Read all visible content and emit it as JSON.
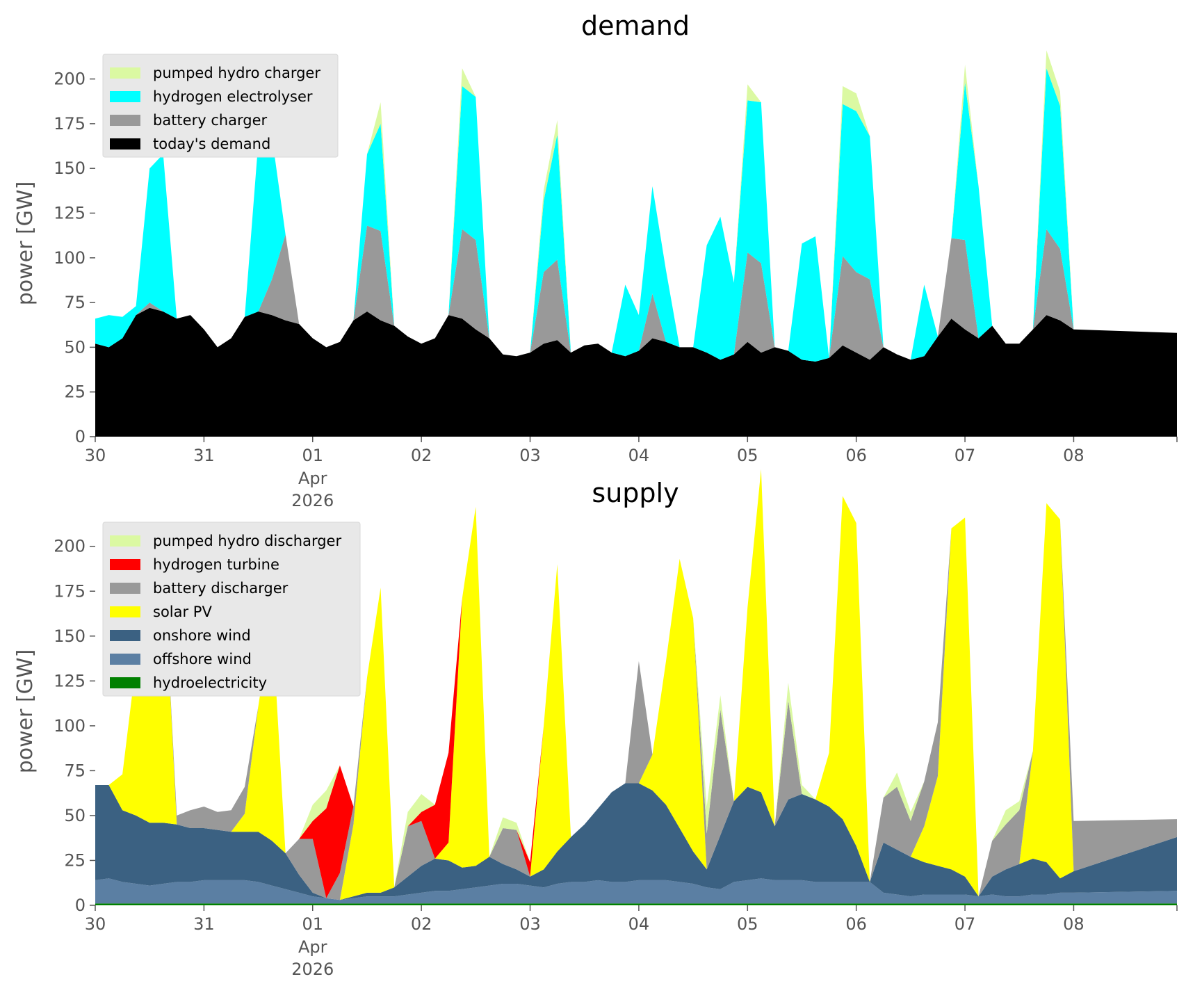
{
  "chart_data": [
    {
      "type": "area",
      "title": "demand",
      "ylabel": "power [GW]",
      "xlabel": "",
      "ylim": [
        0,
        215
      ],
      "yticks": [
        0,
        25,
        50,
        75,
        100,
        125,
        150,
        175,
        200
      ],
      "x_range_days": [
        0,
        9.95
      ],
      "x_start": "2026-03-30",
      "x_step_hours": 3,
      "x_ticks": [
        {
          "x": 0,
          "label": "30"
        },
        {
          "x": 1,
          "label": "31"
        },
        {
          "x": 2,
          "label": "01",
          "sub1": "Apr",
          "sub2": "2026"
        },
        {
          "x": 3,
          "label": "02"
        },
        {
          "x": 4,
          "label": "03"
        },
        {
          "x": 5,
          "label": "04"
        },
        {
          "x": 6,
          "label": "05"
        },
        {
          "x": 7,
          "label": "06"
        },
        {
          "x": 8,
          "label": "07"
        },
        {
          "x": 9,
          "label": "08"
        }
      ],
      "legend_position": "top-left",
      "legend": [
        "pumped hydro charger",
        "hydrogen electrolyser",
        "battery charger",
        "today's demand"
      ],
      "series": [
        {
          "name": "today's demand",
          "color": "#000000",
          "values": [
            52,
            50,
            55,
            68,
            72,
            70,
            66,
            68,
            60,
            50,
            55,
            67,
            70,
            68,
            65,
            63,
            55,
            50,
            53,
            65,
            70,
            65,
            62,
            56,
            52,
            55,
            68,
            66,
            60,
            55,
            46,
            45,
            47,
            52,
            54,
            47,
            51,
            52,
            47,
            45,
            48,
            55,
            53,
            50,
            50,
            47,
            43,
            46,
            53,
            47,
            50,
            48,
            43,
            42,
            44,
            51,
            47,
            43,
            50,
            46,
            43,
            45,
            56,
            66,
            60,
            55,
            62,
            52,
            52,
            60,
            68,
            65,
            60,
            58
          ]
        },
        {
          "name": "battery charger",
          "color": "#999999",
          "values": [
            0,
            0,
            0,
            0,
            3,
            0,
            0,
            0,
            0,
            0,
            0,
            0,
            0,
            20,
            48,
            0,
            0,
            0,
            0,
            0,
            48,
            50,
            0,
            0,
            0,
            0,
            0,
            50,
            50,
            0,
            0,
            0,
            0,
            40,
            45,
            0,
            0,
            0,
            0,
            0,
            0,
            25,
            0,
            0,
            0,
            0,
            0,
            0,
            50,
            50,
            0,
            0,
            0,
            0,
            0,
            50,
            45,
            45,
            0,
            0,
            0,
            0,
            0,
            45,
            50,
            0,
            0,
            0,
            0,
            0,
            48,
            40,
            0,
            0
          ]
        },
        {
          "name": "hydrogen electrolyser",
          "color": "#00ffff",
          "values": [
            14,
            18,
            12,
            5,
            75,
            88,
            0,
            0,
            0,
            0,
            0,
            0,
            95,
            80,
            0,
            0,
            0,
            0,
            0,
            0,
            40,
            60,
            0,
            0,
            0,
            0,
            0,
            80,
            80,
            0,
            0,
            0,
            0,
            40,
            70,
            0,
            0,
            0,
            0,
            40,
            20,
            60,
            40,
            0,
            0,
            60,
            80,
            40,
            85,
            90,
            0,
            0,
            65,
            70,
            0,
            85,
            90,
            80,
            0,
            0,
            0,
            40,
            0,
            0,
            88,
            85,
            0,
            0,
            0,
            0,
            90,
            80,
            0,
            0
          ]
        },
        {
          "name": "pumped hydro charger",
          "color": "#dbf9a2",
          "values": [
            0,
            0,
            0,
            0,
            0,
            0,
            0,
            0,
            0,
            0,
            0,
            0,
            0,
            0,
            0,
            0,
            0,
            0,
            0,
            0,
            0,
            12,
            0,
            0,
            0,
            0,
            0,
            10,
            0,
            0,
            0,
            0,
            0,
            6,
            8,
            0,
            0,
            0,
            0,
            0,
            0,
            0,
            0,
            0,
            0,
            0,
            0,
            0,
            9,
            0,
            0,
            0,
            0,
            0,
            0,
            10,
            10,
            0,
            0,
            0,
            0,
            0,
            0,
            0,
            10,
            0,
            0,
            0,
            0,
            0,
            10,
            8,
            0,
            0
          ]
        }
      ]
    },
    {
      "type": "area",
      "title": "supply",
      "ylabel": "power [GW]",
      "xlabel": "",
      "ylim": [
        0,
        215
      ],
      "yticks": [
        0,
        25,
        50,
        75,
        100,
        125,
        150,
        175,
        200
      ],
      "x_range_days": [
        0,
        9.95
      ],
      "x_start": "2026-03-30",
      "x_step_hours": 3,
      "x_ticks": [
        {
          "x": 0,
          "label": "30"
        },
        {
          "x": 1,
          "label": "31"
        },
        {
          "x": 2,
          "label": "01",
          "sub1": "Apr",
          "sub2": "2026"
        },
        {
          "x": 3,
          "label": "02"
        },
        {
          "x": 4,
          "label": "03"
        },
        {
          "x": 5,
          "label": "04"
        },
        {
          "x": 6,
          "label": "05"
        },
        {
          "x": 7,
          "label": "06"
        },
        {
          "x": 8,
          "label": "07"
        },
        {
          "x": 9,
          "label": "08"
        }
      ],
      "legend_position": "top-left",
      "legend": [
        "pumped hydro discharger",
        "hydrogen turbine",
        "battery discharger",
        "solar PV",
        "onshore wind",
        "offshore wind",
        "hydroelectricity"
      ],
      "series": [
        {
          "name": "hydroelectricity",
          "color": "#008000",
          "values": [
            1,
            1,
            1,
            1,
            1,
            1,
            1,
            1,
            1,
            1,
            1,
            1,
            1,
            1,
            1,
            1,
            1,
            1,
            1,
            1,
            1,
            1,
            1,
            1,
            1,
            1,
            1,
            1,
            1,
            1,
            1,
            1,
            1,
            1,
            1,
            1,
            1,
            1,
            1,
            1,
            1,
            1,
            1,
            1,
            1,
            1,
            1,
            1,
            1,
            1,
            1,
            1,
            1,
            1,
            1,
            1,
            1,
            1,
            1,
            1,
            1,
            1,
            1,
            1,
            1,
            1,
            1,
            1,
            1,
            1,
            1,
            1,
            1,
            1
          ]
        },
        {
          "name": "offshore wind",
          "color": "#5b7fa3",
          "values": [
            13,
            14,
            12,
            11,
            10,
            11,
            12,
            12,
            13,
            13,
            13,
            13,
            12,
            10,
            8,
            6,
            4,
            3,
            2,
            3,
            4,
            4,
            4,
            5,
            6,
            7,
            7,
            8,
            9,
            10,
            11,
            11,
            10,
            9,
            11,
            12,
            12,
            13,
            12,
            12,
            13,
            13,
            13,
            12,
            11,
            9,
            8,
            12,
            13,
            14,
            13,
            13,
            13,
            12,
            12,
            12,
            12,
            12,
            6,
            5,
            4,
            5,
            5,
            5,
            5,
            4,
            5,
            4,
            4,
            5,
            5,
            6,
            6,
            7
          ]
        },
        {
          "name": "onshore wind",
          "color": "#3b6182",
          "values": [
            53,
            52,
            40,
            38,
            35,
            34,
            32,
            30,
            29,
            28,
            27,
            27,
            28,
            25,
            20,
            10,
            2,
            0,
            0,
            1,
            2,
            2,
            5,
            10,
            15,
            18,
            17,
            12,
            12,
            16,
            11,
            8,
            5,
            10,
            18,
            25,
            32,
            40,
            50,
            55,
            54,
            50,
            42,
            30,
            18,
            10,
            30,
            45,
            52,
            48,
            30,
            45,
            48,
            46,
            42,
            35,
            20,
            0,
            28,
            25,
            22,
            18,
            16,
            14,
            10,
            0,
            10,
            15,
            18,
            20,
            18,
            8,
            12,
            30
          ]
        },
        {
          "name": "solar PV",
          "color": "#ffff00",
          "values": [
            0,
            0,
            20,
            85,
            140,
            150,
            0,
            0,
            0,
            0,
            0,
            10,
            70,
            125,
            0,
            0,
            0,
            0,
            0,
            40,
            120,
            170,
            0,
            0,
            0,
            0,
            10,
            150,
            200,
            0,
            0,
            0,
            0,
            80,
            160,
            0,
            0,
            0,
            0,
            0,
            0,
            20,
            80,
            150,
            130,
            0,
            0,
            0,
            100,
            180,
            0,
            0,
            0,
            0,
            30,
            180,
            180,
            0,
            0,
            0,
            0,
            20,
            50,
            190,
            200,
            0,
            0,
            0,
            0,
            60,
            200,
            200,
            0,
            0
          ]
        },
        {
          "name": "battery discharger",
          "color": "#999999",
          "values": [
            0,
            0,
            0,
            0,
            0,
            0,
            5,
            10,
            12,
            10,
            12,
            15,
            0,
            0,
            0,
            20,
            30,
            0,
            15,
            10,
            0,
            0,
            0,
            28,
            25,
            0,
            0,
            0,
            0,
            0,
            20,
            22,
            0,
            0,
            0,
            0,
            0,
            0,
            0,
            0,
            68,
            0,
            0,
            0,
            0,
            20,
            70,
            0,
            0,
            0,
            0,
            55,
            0,
            0,
            0,
            0,
            0,
            0,
            25,
            35,
            20,
            25,
            30,
            0,
            0,
            0,
            20,
            25,
            30,
            0,
            0,
            0,
            28,
            10
          ]
        },
        {
          "name": "hydrogen turbine",
          "color": "#ff0000",
          "values": [
            0,
            0,
            0,
            0,
            0,
            0,
            0,
            0,
            0,
            0,
            0,
            0,
            0,
            0,
            0,
            0,
            10,
            50,
            60,
            0,
            0,
            0,
            0,
            0,
            5,
            30,
            50,
            0,
            0,
            0,
            0,
            0,
            8,
            0,
            0,
            0,
            0,
            0,
            0,
            0,
            0,
            0,
            0,
            0,
            0,
            0,
            0,
            0,
            0,
            0,
            0,
            0,
            0,
            0,
            0,
            0,
            0,
            0,
            0,
            0,
            0,
            0,
            0,
            0,
            0,
            0,
            0,
            0,
            0,
            0,
            0,
            0,
            0,
            0
          ]
        },
        {
          "name": "pumped hydro discharger",
          "color": "#dbf9a2",
          "values": [
            0,
            0,
            0,
            0,
            0,
            0,
            0,
            0,
            0,
            0,
            0,
            0,
            0,
            0,
            0,
            0,
            9,
            10,
            0,
            0,
            0,
            0,
            0,
            8,
            10,
            0,
            0,
            0,
            0,
            0,
            6,
            4,
            0,
            0,
            0,
            0,
            0,
            0,
            0,
            0,
            0,
            0,
            0,
            0,
            0,
            15,
            8,
            0,
            0,
            0,
            0,
            10,
            5,
            0,
            0,
            0,
            0,
            0,
            0,
            8,
            5,
            0,
            0,
            0,
            0,
            0,
            0,
            8,
            5,
            0,
            0,
            0,
            0,
            0
          ]
        }
      ]
    }
  ]
}
